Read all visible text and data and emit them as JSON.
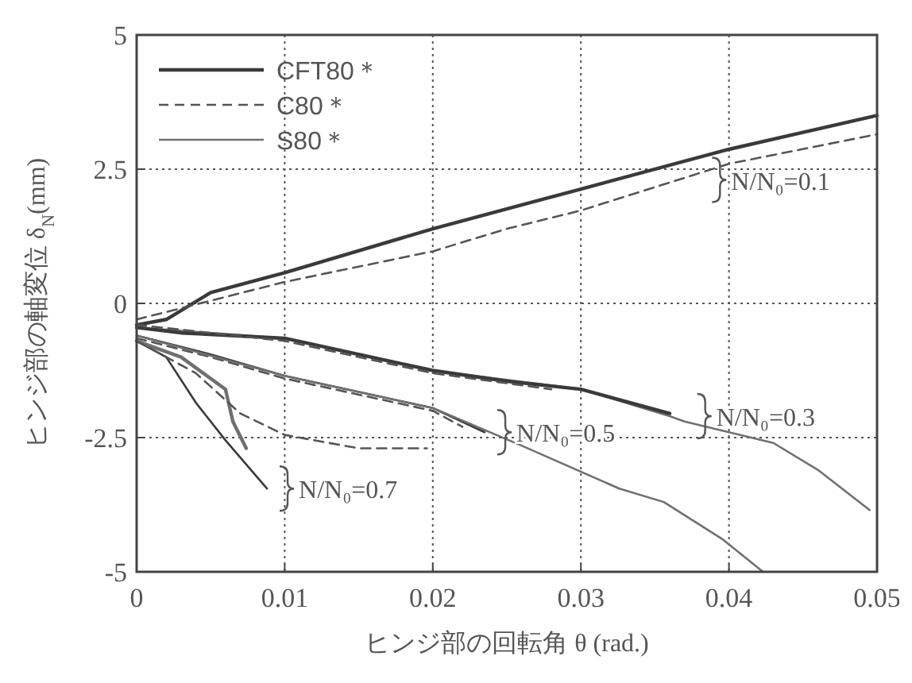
{
  "chart_data": {
    "type": "line",
    "xlabel": "ヒンジ部の回転角 θ (rad.)",
    "ylabel": "ヒンジ部の軸変位 δ$_{N}$(mm)",
    "xlim": [
      0,
      0.05
    ],
    "xticks": [
      0,
      0.01,
      0.02,
      0.03,
      0.04,
      0.05
    ],
    "ylim": [
      -5,
      5
    ],
    "yticks": [
      -5,
      -2.5,
      0,
      2.5,
      5
    ],
    "grid": true,
    "legend": "top left",
    "series": [
      {
        "name": "CFT80＊",
        "color": "#3a3a3a",
        "line_style": "solid",
        "x": [
          0,
          0.002,
          0.005,
          0.01,
          0.02,
          0.03,
          0.04,
          0.05
        ],
        "values": [
          -0.4,
          -0.3,
          0.2,
          0.57,
          1.39,
          2.13,
          2.87,
          3.5
        ]
      },
      {
        "name": "C80＊",
        "color": "#555555",
        "line_style": "dashed",
        "x": [
          0,
          0.005,
          0.01,
          0.02,
          0.025,
          0.03,
          0.04,
          0.05
        ],
        "values": [
          -0.3,
          0.05,
          0.4,
          0.97,
          1.39,
          1.73,
          2.6,
          3.15
        ]
      },
      {
        "name": "S80＊",
        "color": "#707070",
        "line_style": "solid",
        "x": [
          0,
          0.01,
          0.02,
          0.03,
          0.036,
          0.037,
          0.043,
          0.046,
          0.0495
        ],
        "values": [
          -0.45,
          -0.65,
          -1.25,
          -1.6,
          -2.1,
          -2.2,
          -2.6,
          -3.1,
          -3.85
        ]
      },
      {
        "color": "#3a3a3a",
        "line_style": "solid",
        "x": [
          0,
          0.003,
          0.01,
          0.02,
          0.025,
          0.03,
          0.036
        ],
        "values": [
          -0.45,
          -0.55,
          -0.65,
          -1.25,
          -1.45,
          -1.6,
          -2.05
        ]
      },
      {
        "color": "#555555",
        "line_style": "dashed",
        "x": [
          0,
          0.01,
          0.02,
          0.028
        ],
        "values": [
          -0.4,
          -0.7,
          -1.3,
          -1.6
        ]
      },
      {
        "color": "#3a3a3a",
        "line_style": "solid",
        "x": [
          0,
          0.005,
          0.01,
          0.015,
          0.02,
          0.0235
        ],
        "values": [
          -0.6,
          -0.95,
          -1.35,
          -1.65,
          -1.95,
          -2.4
        ]
      },
      {
        "color": "#555555",
        "line_style": "dashed",
        "x": [
          0,
          0.005,
          0.01,
          0.015,
          0.02,
          0.022
        ],
        "values": [
          -0.65,
          -1.0,
          -1.4,
          -1.7,
          -2.0,
          -2.3
        ]
      },
      {
        "color": "#707070",
        "line_style": "solid",
        "x": [
          0,
          0.01,
          0.02,
          0.026,
          0.0326,
          0.0356,
          0.0396,
          0.0423
        ],
        "values": [
          -0.6,
          -1.35,
          -1.95,
          -2.65,
          -3.45,
          -3.7,
          -4.4,
          -5
        ]
      },
      {
        "color": "#3a3a3a",
        "line_style": "solid",
        "x": [
          0,
          0.002,
          0.004,
          0.006,
          0.0088
        ],
        "values": [
          -0.7,
          -1.0,
          -1.85,
          -2.55,
          -3.45
        ]
      },
      {
        "color": "#707070",
        "line_style": "solid",
        "x": [
          0,
          0.003,
          0.006,
          0.0065,
          0.0074
        ],
        "values": [
          -0.7,
          -1.0,
          -1.6,
          -2.2,
          -2.7
        ]
      },
      {
        "color": "#555555",
        "line_style": "dashed",
        "x": [
          0,
          0.004,
          0.007,
          0.01,
          0.015,
          0.0196
        ],
        "values": [
          -0.7,
          -1.3,
          -2.05,
          -2.45,
          -2.7,
          -2.7
        ]
      }
    ],
    "annotations": [
      {
        "text": "N/N₀=0.1",
        "x": 0.038,
        "y": 2.3
      },
      {
        "text": "N/N₀=0.3",
        "x": 0.037,
        "y": -2.1
      },
      {
        "text": "N/N₀=0.5",
        "x": 0.0235,
        "y": -2.4
      },
      {
        "text": "N/N₀=0.7",
        "x": 0.0088,
        "y": -3.45
      }
    ]
  }
}
